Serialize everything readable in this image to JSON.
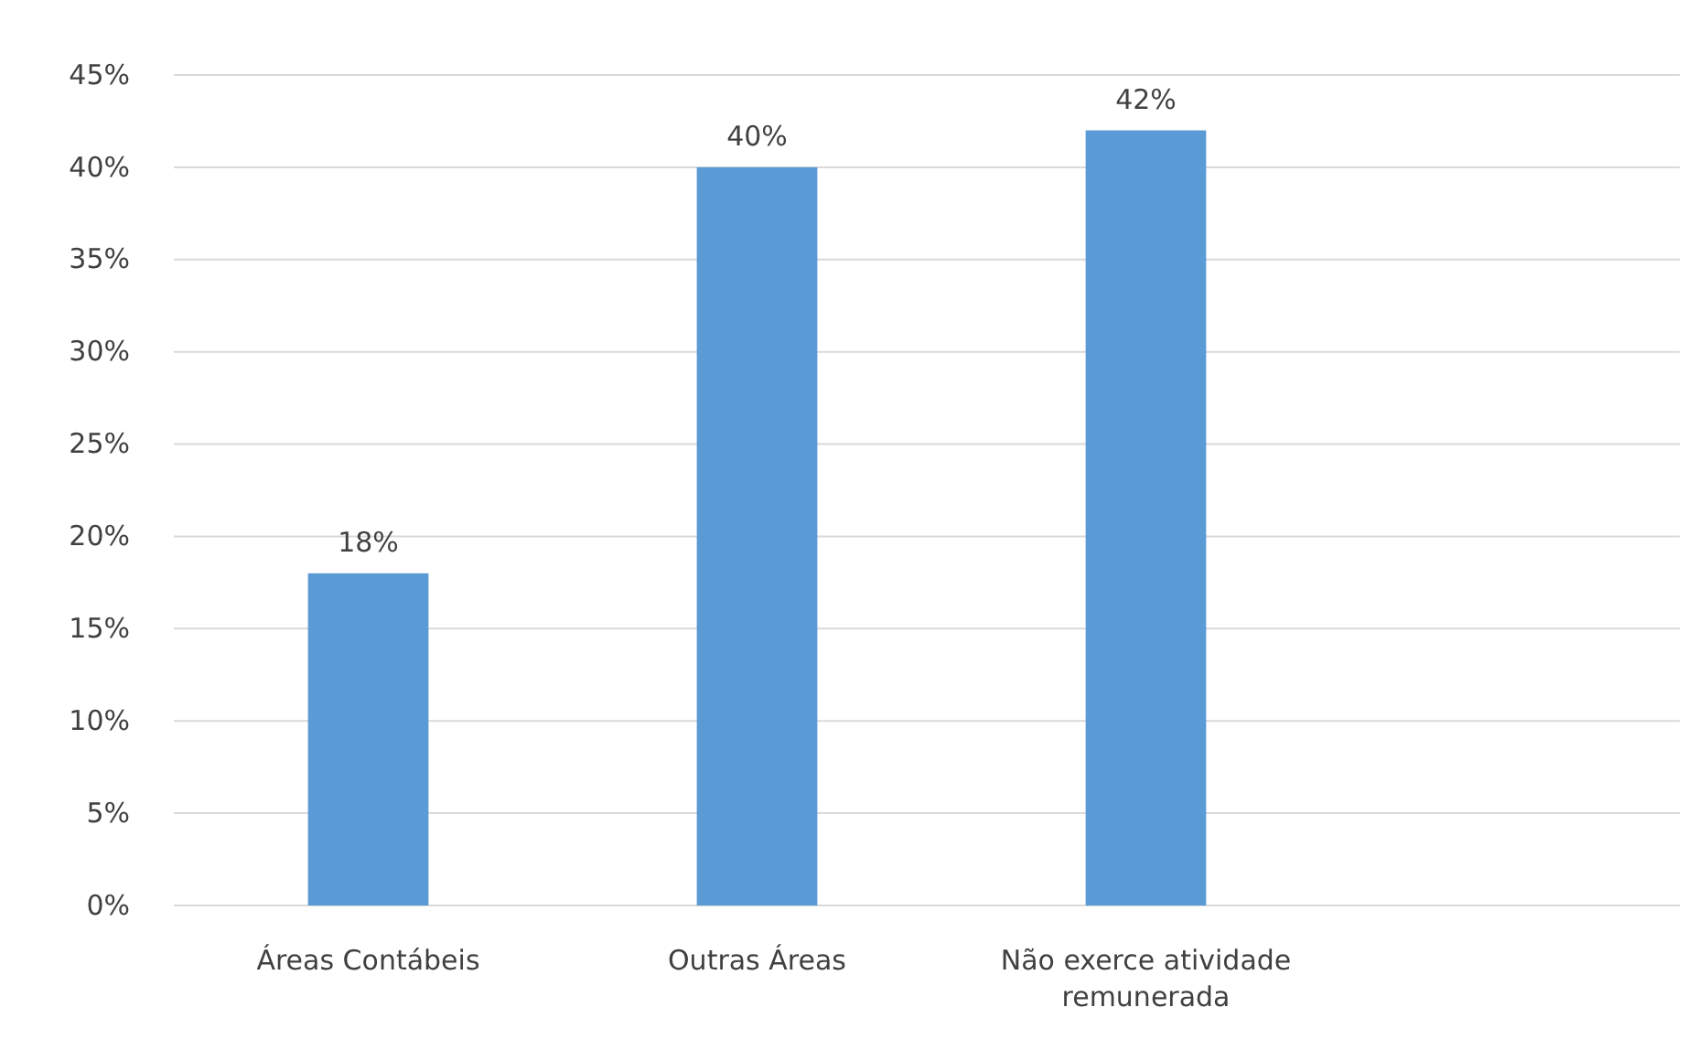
{
  "chart_data": {
    "type": "bar",
    "categories": [
      "Áreas Contábeis",
      "Outras Áreas",
      "Não exerce atividade remunerada",
      null
    ],
    "values": [
      18,
      40,
      42,
      null
    ],
    "value_labels": [
      "18%",
      "40%",
      "42%",
      null
    ],
    "color": "#5b9bd5",
    "ylim": [
      0,
      45
    ],
    "yticks": [
      {
        "value": 0,
        "label": "0%"
      },
      {
        "value": 5,
        "label": "5%"
      },
      {
        "value": 10,
        "label": "10%"
      },
      {
        "value": 15,
        "label": "15%"
      },
      {
        "value": 20,
        "label": "20%"
      },
      {
        "value": 25,
        "label": "25%"
      },
      {
        "value": 30,
        "label": "30%"
      },
      {
        "value": 35,
        "label": "35%"
      },
      {
        "value": 40,
        "label": "40%"
      },
      {
        "value": 45,
        "label": "45%"
      }
    ],
    "grid": "y"
  }
}
